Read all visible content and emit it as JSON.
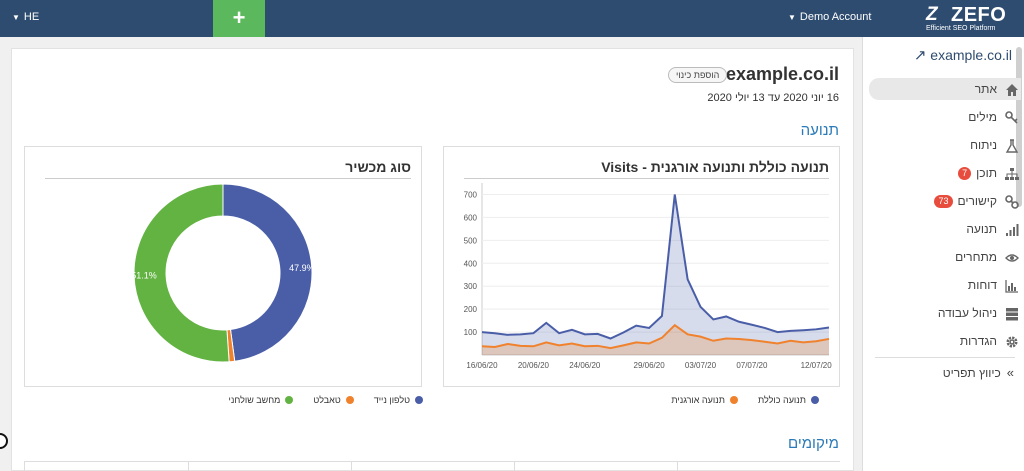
{
  "topbar": {
    "language": "HE",
    "add_label": "+",
    "account": "Demo Account",
    "logo_mark": "Z",
    "logo_name": "ZEFO",
    "logo_tagline": "Efficient SEO Platform"
  },
  "sidebar": {
    "site": "example.co.il",
    "items": [
      {
        "label": "אתר",
        "icon": "home-icon",
        "active": true
      },
      {
        "label": "מילים",
        "icon": "key-icon"
      },
      {
        "label": "ניתוח",
        "icon": "flask-icon"
      },
      {
        "label": "תוכן",
        "icon": "sitemap-icon",
        "badge": "7"
      },
      {
        "label": "קישורים",
        "icon": "link-icon",
        "badge": "73"
      },
      {
        "label": "תנועה",
        "icon": "signal-icon"
      },
      {
        "label": "מתחרים",
        "icon": "eye-icon"
      },
      {
        "label": "דוחות",
        "icon": "bar-chart-icon"
      },
      {
        "label": "ניהול עבודה",
        "icon": "server-icon"
      },
      {
        "label": "הגדרות",
        "icon": "gear-icon"
      }
    ],
    "collapse_label": "כיווץ תפריט"
  },
  "main": {
    "site_title": "example.co.il",
    "add_alias": "הוספת כינוי",
    "date_range": "16 יוני 2020 עד 13 יולי 2020",
    "traffic_section": "תנועה",
    "positions_section": "מיקומים"
  },
  "traffic_panel": {
    "title": "תנועה כוללת ותנועה אורגנית - Visits",
    "legend": [
      "תנועה כוללת",
      "תנועה אורגנית"
    ]
  },
  "device_panel": {
    "title": "סוג מכשיר",
    "legend": [
      "טלפון נייד",
      "טאבלט",
      "מחשב שולחני"
    ],
    "labels": [
      "47.9%",
      "51.1%"
    ]
  },
  "colors": {
    "primary": "#4a5ea8",
    "organic": "#f0822d",
    "desktop": "#62b341",
    "accent": "#2a7ab8",
    "topbar": "#2e4c70",
    "add_green": "#5cb85c",
    "badge": "#e74c3c"
  },
  "chart_data": [
    {
      "type": "area",
      "title": "תנועה כוללת ותנועה אורגנית - Visits",
      "x": [
        "16/06/20",
        "17/06/20",
        "18/06/20",
        "19/06/20",
        "20/06/20",
        "21/06/20",
        "22/06/20",
        "23/06/20",
        "24/06/20",
        "25/06/20",
        "26/06/20",
        "27/06/20",
        "28/06/20",
        "29/06/20",
        "30/06/20",
        "01/07/20",
        "02/07/20",
        "03/07/20",
        "04/07/20",
        "05/07/20",
        "06/07/20",
        "07/07/20",
        "08/07/20",
        "09/07/20",
        "10/07/20",
        "11/07/20",
        "12/07/20",
        "13/07/20"
      ],
      "xticks": [
        "16/06/20",
        "20/06/20",
        "24/06/20",
        "29/06/20",
        "03/07/20",
        "07/07/20",
        "12/07/20"
      ],
      "yticks": [
        100,
        200,
        300,
        400,
        500,
        600,
        700
      ],
      "ylim": [
        0,
        750
      ],
      "grid": true,
      "legend_position": "bottom",
      "series": [
        {
          "name": "תנועה כוללת",
          "values": [
            100,
            95,
            88,
            90,
            95,
            140,
            95,
            110,
            90,
            92,
            72,
            98,
            128,
            118,
            170,
            700,
            330,
            210,
            155,
            168,
            145,
            132,
            118,
            100,
            105,
            108,
            112,
            120
          ]
        },
        {
          "name": "תנועה אורגנית",
          "values": [
            38,
            35,
            48,
            40,
            38,
            55,
            42,
            50,
            38,
            40,
            30,
            42,
            55,
            50,
            75,
            130,
            90,
            80,
            62,
            72,
            70,
            65,
            58,
            50,
            62,
            55,
            60,
            70
          ]
        }
      ]
    },
    {
      "type": "pie",
      "title": "סוג מכשיר",
      "categories": [
        "טלפון נייד",
        "טאבלט",
        "מחשב שולחני"
      ],
      "values": [
        47.9,
        1.0,
        51.1
      ],
      "legend_position": "bottom"
    }
  ]
}
